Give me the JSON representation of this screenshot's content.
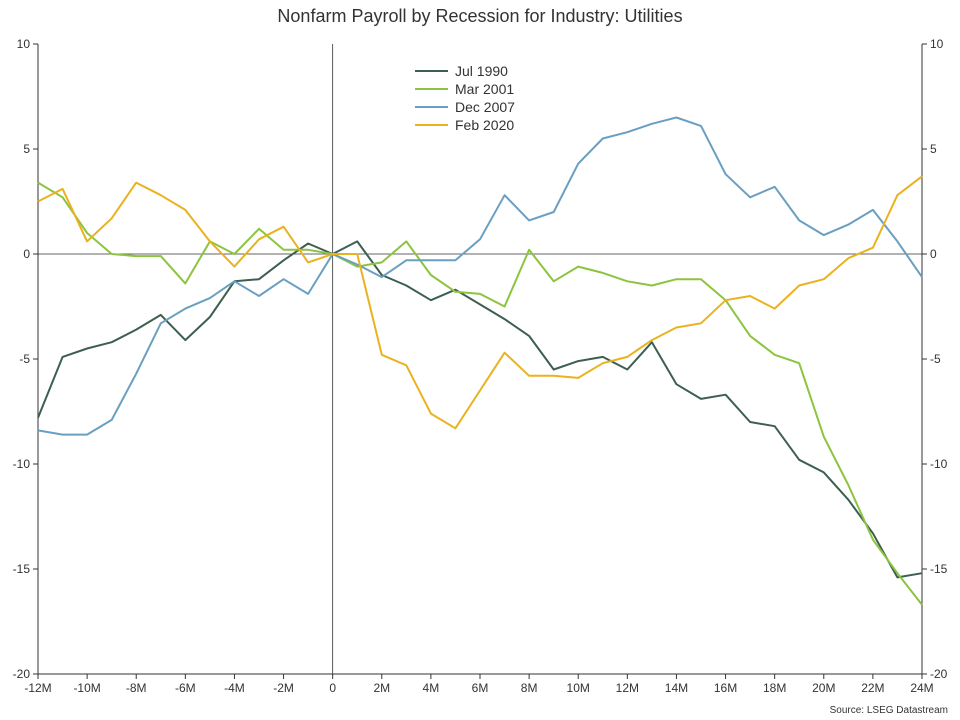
{
  "chart_data": {
    "type": "line",
    "title": "Nonfarm Payroll by Recession for Industry: Utilities",
    "source": "Source: LSEG Datastream",
    "x": [
      -12,
      -11,
      -10,
      -9,
      -8,
      -7,
      -6,
      -5,
      -4,
      -3,
      -2,
      -1,
      0,
      1,
      2,
      3,
      4,
      5,
      6,
      7,
      8,
      9,
      10,
      11,
      12,
      13,
      14,
      15,
      16,
      17,
      18,
      19,
      20,
      21,
      22,
      23,
      24
    ],
    "x_tick_values": [
      -12,
      -10,
      -8,
      -6,
      -4,
      -2,
      0,
      2,
      4,
      6,
      8,
      10,
      12,
      14,
      16,
      18,
      20,
      22,
      24
    ],
    "x_tick_labels": [
      "-12M",
      "-10M",
      "-8M",
      "-6M",
      "-4M",
      "-2M",
      "0",
      "2M",
      "4M",
      "6M",
      "8M",
      "10M",
      "12M",
      "14M",
      "16M",
      "18M",
      "20M",
      "22M",
      "24M"
    ],
    "xlim": [
      -12,
      24
    ],
    "ylim": [
      -20,
      10
    ],
    "y_ticks": [
      10,
      5,
      0,
      -5,
      -10,
      -15,
      -20
    ],
    "y_tick_labels": [
      "10",
      "5",
      "0",
      "-5",
      "-10",
      "-15",
      "-20"
    ],
    "xlabel": "",
    "ylabel": "",
    "grid": false,
    "legend_position": "top-center",
    "series": [
      {
        "name": "Jul 1990",
        "color": "#3d5f4f",
        "values": [
          -7.8,
          -4.9,
          -4.5,
          -4.2,
          -3.6,
          -2.9,
          -4.1,
          -3.0,
          -1.3,
          -1.2,
          -0.3,
          0.5,
          0.0,
          0.6,
          -1.0,
          -1.5,
          -2.2,
          -1.7,
          -2.4,
          -3.1,
          -3.9,
          -5.5,
          -5.1,
          -4.9,
          -5.5,
          -4.2,
          -6.2,
          -6.9,
          -6.7,
          -8.0,
          -8.2,
          -9.8,
          -10.4,
          -11.7,
          -13.3,
          -15.4,
          -15.2
        ]
      },
      {
        "name": "Mar 2001",
        "color": "#8cc43f",
        "values": [
          3.4,
          2.7,
          1.0,
          0.0,
          -0.1,
          -0.1,
          -1.4,
          0.6,
          0.0,
          1.2,
          0.2,
          0.2,
          0.0,
          -0.6,
          -0.4,
          0.6,
          -1.0,
          -1.8,
          -1.9,
          -2.5,
          0.2,
          -1.3,
          -0.6,
          -0.9,
          -1.3,
          -1.5,
          -1.2,
          -1.2,
          -2.2,
          -3.9,
          -4.8,
          -5.2,
          -8.7,
          -11.0,
          -13.6,
          -15.2,
          -16.7
        ]
      },
      {
        "name": "Dec 2007",
        "color": "#6a9fc1",
        "values": [
          -8.4,
          -8.6,
          -8.6,
          -7.9,
          -5.7,
          -3.3,
          -2.6,
          -2.1,
          -1.3,
          -2.0,
          -1.2,
          -1.9,
          0.0,
          -0.5,
          -1.1,
          -0.3,
          -0.3,
          -0.3,
          0.7,
          2.8,
          1.6,
          2.0,
          4.3,
          5.5,
          5.8,
          6.2,
          6.5,
          6.1,
          3.8,
          2.7,
          3.2,
          1.6,
          0.9,
          1.4,
          2.1,
          0.6,
          -1.1
        ]
      },
      {
        "name": "Feb 2020",
        "color": "#eab21f",
        "values": [
          2.5,
          3.1,
          0.6,
          1.7,
          3.4,
          2.8,
          2.1,
          0.6,
          -0.6,
          0.7,
          1.3,
          -0.4,
          0.0,
          0.0,
          -4.8,
          -5.3,
          -7.6,
          -8.3,
          -6.5,
          -4.7,
          -5.8,
          -5.8,
          -5.9,
          -5.2,
          -4.9,
          -4.1,
          -3.5,
          -3.3,
          -2.2,
          -2.0,
          -2.6,
          -1.5,
          -1.2,
          -0.2,
          0.3,
          2.8,
          3.7
        ]
      }
    ]
  }
}
